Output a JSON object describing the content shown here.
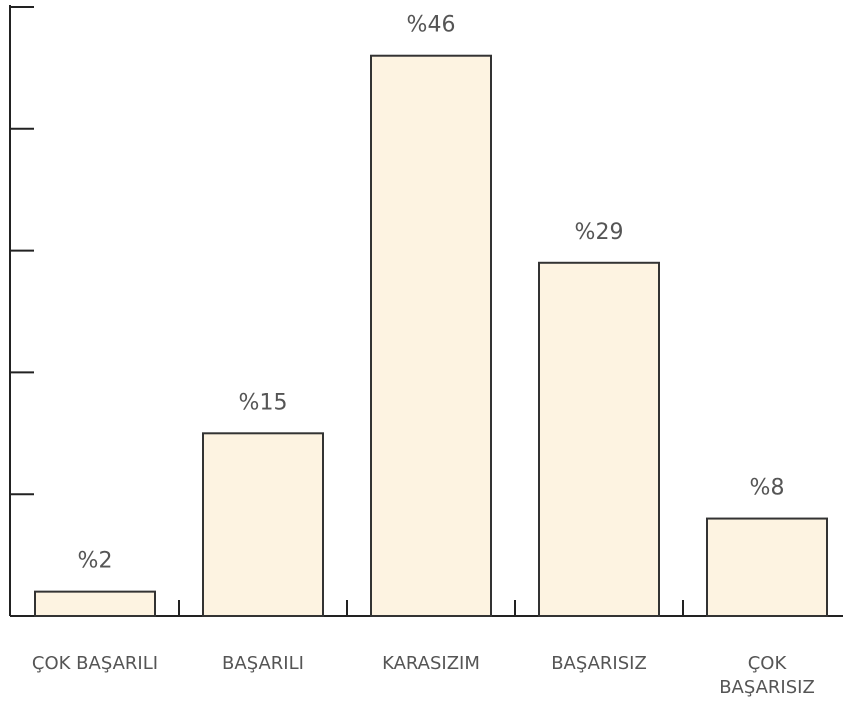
{
  "chart_data": {
    "type": "bar",
    "categories": [
      "ÇOK BAŞARILI",
      "BAŞARILI",
      "KARASIZIM",
      "BAŞARISIZ",
      "ÇOK BAŞARISIZ"
    ],
    "values": [
      2,
      15,
      46,
      29,
      8
    ],
    "value_labels": [
      "%2",
      "%15",
      "%46",
      "%29",
      "%8"
    ],
    "color": "#fdf3e1",
    "ylim": [
      0,
      50
    ],
    "yticks": [
      0,
      10,
      20,
      30,
      40,
      50
    ],
    "grid": false
  }
}
